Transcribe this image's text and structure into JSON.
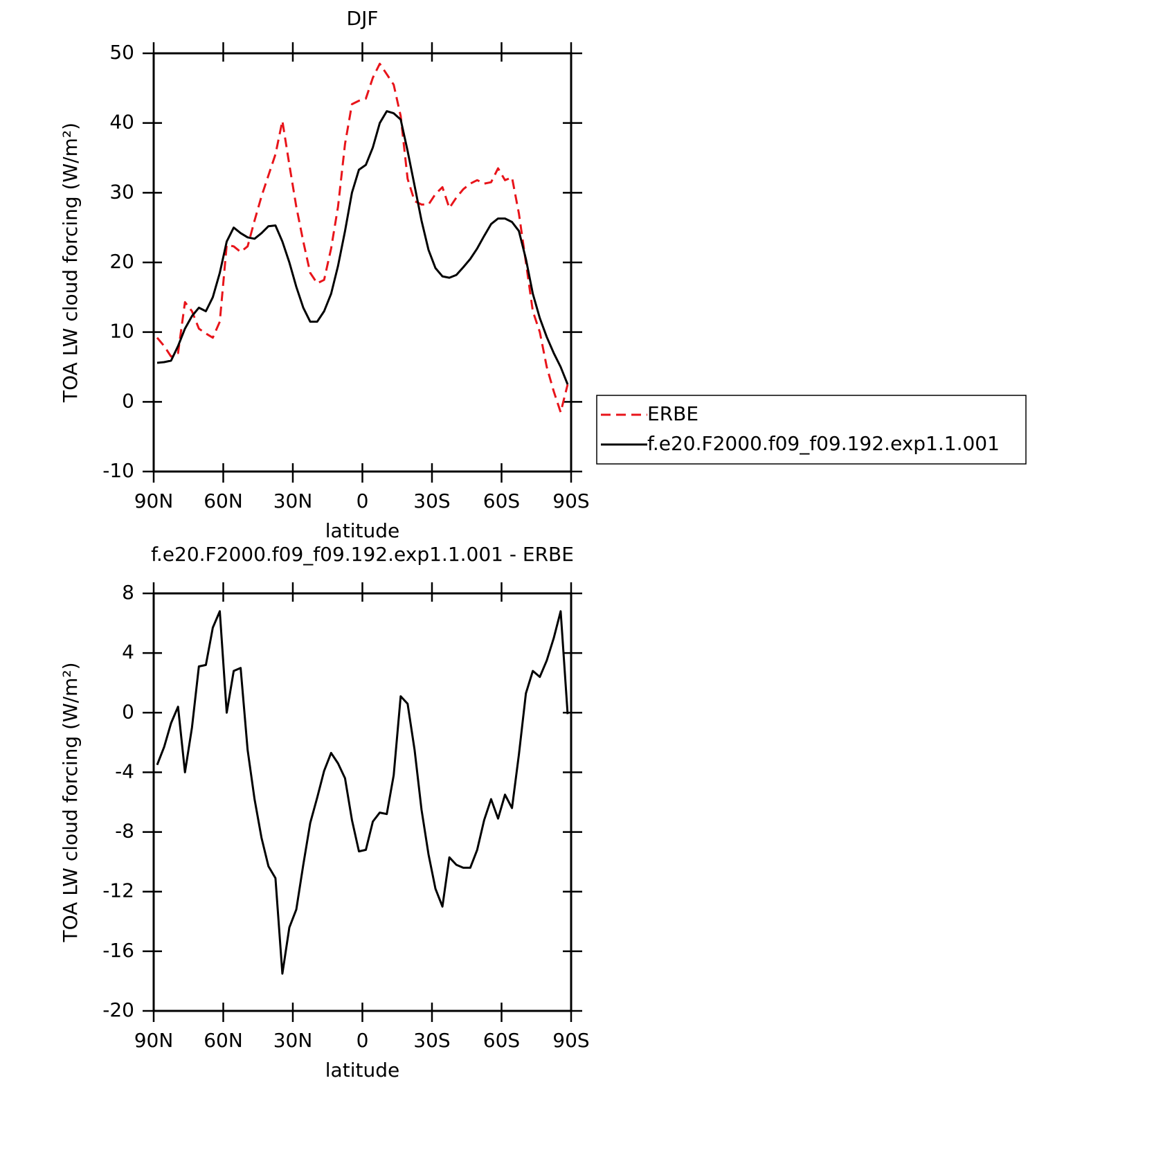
{
  "chart_data": [
    {
      "type": "line",
      "title": "DJF",
      "xlabel": "latitude",
      "ylabel": "TOA LW cloud forcing (W/m²)",
      "x": [
        88.5,
        85.5,
        82.5,
        79.5,
        76.5,
        73.5,
        70.5,
        67.5,
        64.5,
        61.5,
        58.5,
        55.5,
        52.5,
        49.5,
        46.5,
        43.5,
        40.5,
        37.5,
        34.5,
        31.5,
        28.5,
        25.5,
        22.5,
        19.5,
        16.5,
        13.5,
        10.5,
        7.5,
        4.5,
        1.5,
        -1.5,
        -4.5,
        -7.5,
        -10.5,
        -13.5,
        -16.5,
        -19.5,
        -22.5,
        -25.5,
        -28.5,
        -31.5,
        -34.5,
        -37.5,
        -40.5,
        -43.5,
        -46.5,
        -49.5,
        -52.5,
        -55.5,
        -58.5,
        -61.5,
        -64.5,
        -67.5,
        -70.5,
        -73.5,
        -76.5,
        -79.5,
        -82.5,
        -85.5,
        -88.5
      ],
      "series": [
        {
          "name": "ERBE",
          "color": "#e8141a",
          "dashed": true,
          "values": [
            9.2,
            8,
            6.5,
            7,
            14.3,
            13,
            10.5,
            9.8,
            9.2,
            11.5,
            22.5,
            22.3,
            21.5,
            22.3,
            26,
            29.5,
            32.5,
            35.5,
            40.3,
            34,
            28,
            23,
            18.5,
            17,
            17.5,
            22,
            28,
            37,
            42.7,
            43.2,
            43.5,
            46.5,
            48.5,
            47,
            45.5,
            41,
            32,
            28.8,
            28.3,
            28.3,
            29.8,
            30.8,
            27.8,
            29.3,
            30.5,
            31.3,
            31.8,
            31.3,
            31.5,
            33.5,
            31.8,
            32.2,
            27,
            20,
            13,
            10,
            5,
            1.5,
            -1.5,
            2.5
          ]
        },
        {
          "name": "f.e20.F2000.f09_f09.192.exp1.1.001",
          "color": "#000000",
          "dashed": false,
          "values": [
            5.6,
            5.7,
            5.9,
            8,
            10.5,
            12.3,
            13.5,
            13,
            15,
            18.5,
            23,
            25,
            24.2,
            23.6,
            23.4,
            24.2,
            25.2,
            25.3,
            23,
            20,
            16.5,
            13.5,
            11.5,
            11.5,
            13,
            15.5,
            19.5,
            24.5,
            30,
            33.3,
            34,
            36.5,
            40,
            41.7,
            41.4,
            40.5,
            36,
            31,
            26,
            21.8,
            19.2,
            18,
            17.8,
            18.2,
            19.3,
            20.5,
            22,
            23.8,
            25.5,
            26.3,
            26.3,
            25.8,
            24.5,
            20.5,
            15.5,
            12,
            9.3,
            7,
            5,
            2.5
          ]
        }
      ],
      "xlim": [
        90,
        -90
      ],
      "xticks": [
        {
          "value": 90,
          "label": "90N"
        },
        {
          "value": 60,
          "label": "60N"
        },
        {
          "value": 30,
          "label": "30N"
        },
        0,
        {
          "value": -30,
          "label": "30S"
        },
        {
          "value": -60,
          "label": "60S"
        },
        {
          "value": -90,
          "label": "90S"
        }
      ],
      "ylim": [
        -10,
        50
      ],
      "yticks": [
        -10,
        0,
        10,
        20,
        30,
        40,
        50
      ],
      "legend": "right"
    },
    {
      "type": "line",
      "title": "f.e20.F2000.f09_f09.192.exp1.1.001 - ERBE",
      "xlabel": "latitude",
      "ylabel": "TOA LW cloud forcing (W/m²)",
      "x": [
        88.5,
        85.5,
        82.5,
        79.5,
        76.5,
        73.5,
        70.5,
        67.5,
        64.5,
        61.5,
        58.5,
        55.5,
        52.5,
        49.5,
        46.5,
        43.5,
        40.5,
        37.5,
        34.5,
        31.5,
        28.5,
        25.5,
        22.5,
        19.5,
        16.5,
        13.5,
        10.5,
        7.5,
        4.5,
        1.5,
        -1.5,
        -4.5,
        -7.5,
        -10.5,
        -13.5,
        -16.5,
        -19.5,
        -22.5,
        -25.5,
        -28.5,
        -31.5,
        -34.5,
        -37.5,
        -40.5,
        -43.5,
        -46.5,
        -49.5,
        -52.5,
        -55.5,
        -58.5,
        -61.5,
        -64.5,
        -67.5,
        -70.5,
        -73.5,
        -76.5,
        -79.5,
        -82.5,
        -85.5,
        -88.5
      ],
      "values": [
        -3.5,
        -2.3,
        -0.7,
        0.4,
        -4,
        -1,
        3.1,
        3.2,
        5.7,
        6.8,
        0,
        2.8,
        3,
        -2.5,
        -5.8,
        -8.4,
        -10.3,
        -11.1,
        -17.5,
        -14.4,
        -13.2,
        -10.2,
        -7.4,
        -5.7,
        -3.9,
        -2.7,
        -3.4,
        -4.4,
        -7.2,
        -9.3,
        -9.2,
        -7.3,
        -6.7,
        -6.8,
        -4.2,
        1.1,
        0.6,
        -2.5,
        -6.5,
        -9.5,
        -11.8,
        -13,
        -9.7,
        -10.2,
        -10.4,
        -10.4,
        -9.2,
        -7.2,
        -5.8,
        -7.1,
        -5.5,
        -6.4,
        -2.8,
        1.3,
        2.8,
        2.4,
        3.5,
        5,
        6.8,
        -0.1
      ],
      "color": "#000000",
      "xlim": [
        90,
        -90
      ],
      "xticks": [
        {
          "value": 90,
          "label": "90N"
        },
        {
          "value": 60,
          "label": "60N"
        },
        {
          "value": 30,
          "label": "30N"
        },
        0,
        {
          "value": -30,
          "label": "30S"
        },
        {
          "value": -60,
          "label": "60S"
        },
        {
          "value": -90,
          "label": "90S"
        }
      ],
      "ylim": [
        -20,
        8
      ],
      "yticks": [
        -20,
        -16,
        -12,
        -8,
        -4,
        0,
        4,
        8
      ]
    }
  ]
}
